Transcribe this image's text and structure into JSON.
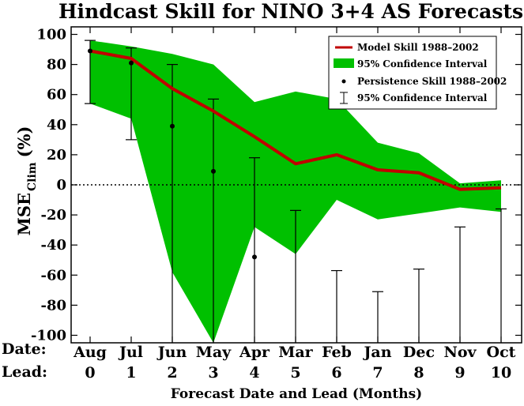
{
  "chart_data": {
    "type": "line",
    "title": "Hindcast Skill for NINO 3+4 AS Forecasts",
    "xlabel": "Forecast Date and Lead (Months)",
    "ylabel_main": "MSE",
    "ylabel_sub": "Clim",
    "ylabel_unit": "(%)",
    "row_label_date": "Date:",
    "row_label_lead": "Lead:",
    "categories": [
      "Aug",
      "Jul",
      "Jun",
      "May",
      "Apr",
      "Mar",
      "Feb",
      "Jan",
      "Dec",
      "Nov",
      "Oct"
    ],
    "leads": [
      "0",
      "1",
      "2",
      "3",
      "4",
      "5",
      "6",
      "7",
      "8",
      "9",
      "10"
    ],
    "ylim": [
      -105,
      105
    ],
    "yticks": [
      100,
      80,
      60,
      40,
      20,
      0,
      -20,
      -40,
      -60,
      -80,
      -100
    ],
    "zero_line": true,
    "legend_position": "top-right",
    "series": [
      {
        "name": "Model Skill 1988–2002",
        "kind": "line",
        "values": [
          89,
          84,
          64,
          49,
          32,
          14,
          20,
          10,
          8,
          -3,
          -2
        ]
      },
      {
        "name": "95% Confidence Interval",
        "kind": "band",
        "lower": [
          54,
          44,
          -58,
          -108,
          -28,
          -46,
          -10,
          -23,
          -19,
          -15,
          -18
        ],
        "upper": [
          96,
          92,
          87,
          80,
          55,
          62,
          57,
          28,
          21,
          1,
          3
        ]
      },
      {
        "name": "Persistence Skill 1988–2002",
        "kind": "points",
        "values": [
          89,
          81,
          39,
          9,
          -48,
          null,
          null,
          null,
          null,
          null,
          null
        ]
      },
      {
        "name": "95% Confidence Interval",
        "kind": "errorbars",
        "lower": [
          54,
          30,
          -105,
          -105,
          -105,
          -105,
          -105,
          -105,
          -105,
          -105,
          -105
        ],
        "upper": [
          96,
          91,
          80,
          57,
          18,
          -17,
          -57,
          -71,
          -56,
          -28,
          -16
        ]
      }
    ],
    "colors": {
      "band": "#00c000",
      "model_line": "#c00000",
      "points": "#000000",
      "axes": "#000000"
    }
  }
}
